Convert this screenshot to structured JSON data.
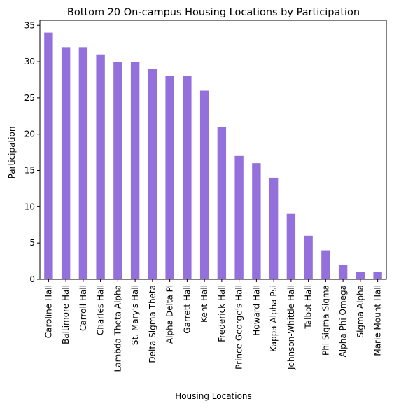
{
  "chart_data": {
    "type": "bar",
    "title": "Bottom 20 On-campus Housing Locations by Participation",
    "xlabel": "Housing Locations",
    "ylabel": "Participation",
    "categories": [
      "Caroline Hall",
      "Baltimore Hall",
      "Carroll Hall",
      "Charles Hall",
      "Lambda Theta Alpha",
      "St. Mary's Hall",
      "Delta Sigma Theta",
      "Alpha Delta Pi",
      "Garrett Hall",
      "Kent Hall",
      "Frederick Hall",
      "Prince George's Hall",
      "Howard Hall",
      "Kappa Alpha Psi",
      "Johnson-Whittle Hall",
      "Talbot Hall",
      "Phi Sigma Sigma",
      "Alpha Phi Omega",
      "Sigma Alpha",
      "Marie Mount Hall"
    ],
    "values": [
      34,
      32,
      32,
      31,
      30,
      30,
      29,
      28,
      28,
      26,
      21,
      17,
      16,
      14,
      9,
      6,
      4,
      2,
      1,
      1
    ],
    "ylim": [
      0,
      35.7
    ],
    "yticks": [
      0,
      5,
      10,
      15,
      20,
      25,
      30,
      35
    ],
    "bar_color": "#9370db",
    "grid": false,
    "legend": false
  }
}
